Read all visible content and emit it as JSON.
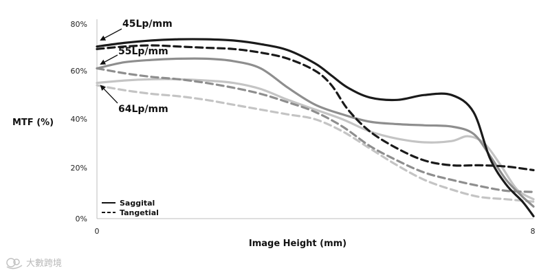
{
  "chart_data": {
    "type": "line",
    "title": "",
    "xlabel": "Image Height (mm)",
    "ylabel": "MTF (%)",
    "xlim": [
      0,
      8
    ],
    "ylim": [
      0,
      80
    ],
    "x_ticks": [
      "0",
      "8"
    ],
    "y_ticks": [
      "0%",
      "20%",
      "40%",
      "60%",
      "80%"
    ],
    "legend": {
      "position": "bottom-left",
      "entries": [
        {
          "label": "Saggital",
          "style": "solid"
        },
        {
          "label": "Tangetial",
          "style": "dashed"
        }
      ]
    },
    "annotations": [
      "45Lp/mm",
      "55Lp/mm",
      "64Lp/mm"
    ],
    "series": [
      {
        "name": "45Lp/mm Saggital",
        "style": "solid",
        "color": "#1a1a1a",
        "x": [
          0,
          0.5,
          1,
          1.5,
          2,
          2.5,
          3,
          3.5,
          4,
          4.3,
          4.6,
          5,
          5.5,
          6,
          6.5,
          6.9,
          7.2,
          7.5,
          7.8,
          8
        ],
        "y": [
          71,
          72.5,
          73.5,
          74,
          74,
          73.5,
          72,
          69.5,
          64,
          59,
          54,
          50,
          49,
          51,
          51,
          44,
          25,
          14,
          7,
          1
        ]
      },
      {
        "name": "45Lp/mm Tangetial",
        "style": "dashed",
        "color": "#1a1a1a",
        "x": [
          0,
          0.5,
          1,
          1.5,
          2,
          2.5,
          3,
          3.5,
          4,
          4.3,
          4.6,
          5,
          5.5,
          6,
          6.5,
          7,
          7.5,
          8
        ],
        "y": [
          70,
          71,
          71.5,
          71,
          70.5,
          70,
          68.5,
          66,
          61,
          55,
          45,
          36,
          29,
          24,
          22,
          22,
          21.5,
          20
        ]
      },
      {
        "name": "55Lp/mm Saggital",
        "style": "solid",
        "color": "#8e8e8e",
        "x": [
          0,
          0.5,
          1,
          1.5,
          2,
          2.5,
          3,
          3.5,
          4,
          4.5,
          5,
          5.5,
          6,
          6.5,
          6.9,
          7.2,
          7.5,
          7.8,
          8
        ],
        "y": [
          62,
          64.5,
          65.5,
          66,
          66,
          65,
          62,
          54,
          47,
          43,
          40,
          39,
          38.5,
          38,
          35,
          26,
          16,
          9,
          5
        ]
      },
      {
        "name": "55Lp/mm Tangetial",
        "style": "dashed",
        "color": "#8e8e8e",
        "x": [
          0,
          0.5,
          1,
          1.5,
          2,
          2.5,
          3,
          3.5,
          4,
          4.5,
          5,
          5.5,
          6,
          6.5,
          7,
          7.5,
          8
        ],
        "y": [
          62,
          60,
          58.5,
          57.5,
          56,
          54,
          51.5,
          48,
          44,
          38,
          30,
          24,
          19,
          16,
          13.5,
          11.5,
          11
        ]
      },
      {
        "name": "64Lp/mm Saggital",
        "style": "solid",
        "color": "#c4c4c4",
        "x": [
          0,
          0.5,
          1,
          1.5,
          2,
          2.5,
          3,
          3.5,
          4,
          4.5,
          5,
          5.5,
          6,
          6.5,
          6.8,
          7.1,
          7.4,
          7.7,
          8
        ],
        "y": [
          56,
          57,
          57.5,
          57.5,
          57,
          56,
          53.5,
          49,
          45,
          41,
          36,
          33,
          31.5,
          32,
          34,
          31,
          22,
          12,
          8
        ]
      },
      {
        "name": "64Lp/mm Tangetial",
        "style": "dashed",
        "color": "#c4c4c4",
        "x": [
          0,
          0.5,
          1,
          1.5,
          2,
          2.5,
          3,
          3.5,
          4,
          4.5,
          5,
          5.5,
          6,
          6.5,
          7,
          7.5,
          8
        ],
        "y": [
          55,
          53,
          51.5,
          50.5,
          49,
          47,
          45,
          43,
          41,
          36,
          29,
          22,
          16,
          12,
          9,
          8,
          7
        ]
      }
    ]
  },
  "watermark": {
    "text": "大數跨境",
    "logo_icon": "brand-logo-icon"
  }
}
